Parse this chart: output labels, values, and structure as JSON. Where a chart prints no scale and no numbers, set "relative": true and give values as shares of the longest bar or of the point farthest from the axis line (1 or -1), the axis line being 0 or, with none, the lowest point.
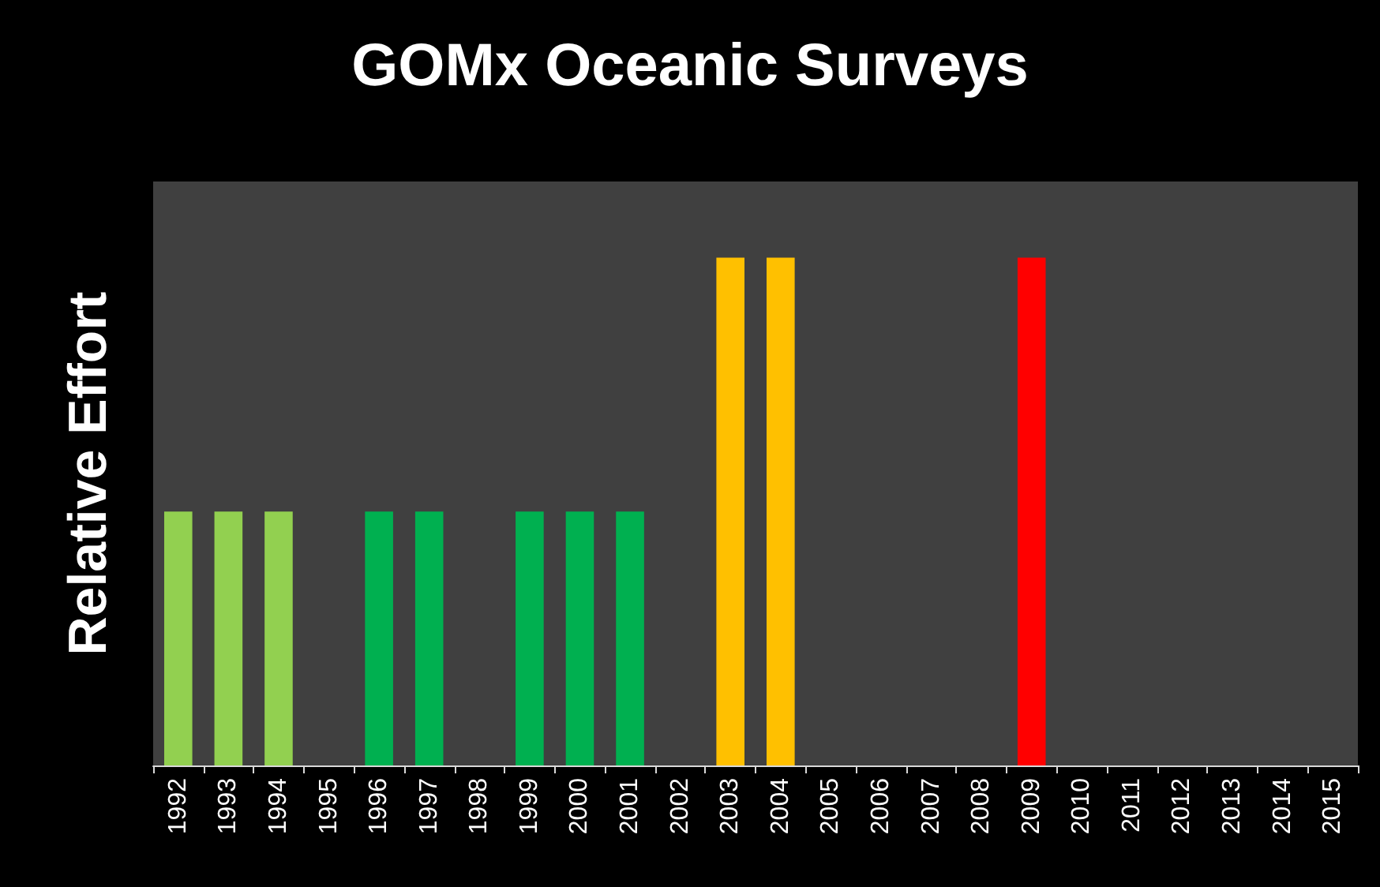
{
  "chart_data": {
    "type": "bar",
    "title": "GOMx Oceanic Surveys",
    "ylabel": "Relative Effort",
    "relative": true,
    "grid": false,
    "categories": [
      "1992",
      "1993",
      "1994",
      "1995",
      "1996",
      "1997",
      "1998",
      "1999",
      "2000",
      "2001",
      "2002",
      "2003",
      "2004",
      "2005",
      "2006",
      "2007",
      "2008",
      "2009",
      "2010",
      "2011",
      "2012",
      "2013",
      "2014",
      "2015"
    ],
    "values": [
      0.5,
      0.5,
      0.5,
      0,
      0.5,
      0.5,
      0,
      0.5,
      0.5,
      0.5,
      0,
      1,
      1,
      0,
      0,
      0,
      0,
      1,
      0,
      0,
      0,
      0,
      0,
      0
    ],
    "colors": [
      "#92d050",
      "#92d050",
      "#92d050",
      "#404040",
      "#00b050",
      "#00b050",
      "#404040",
      "#00b050",
      "#00b050",
      "#00b050",
      "#404040",
      "#ffc000",
      "#ffc000",
      "#404040",
      "#404040",
      "#404040",
      "#404040",
      "#ff0000",
      "#404040",
      "#404040",
      "#404040",
      "#404040",
      "#404040",
      "#404040"
    ]
  }
}
